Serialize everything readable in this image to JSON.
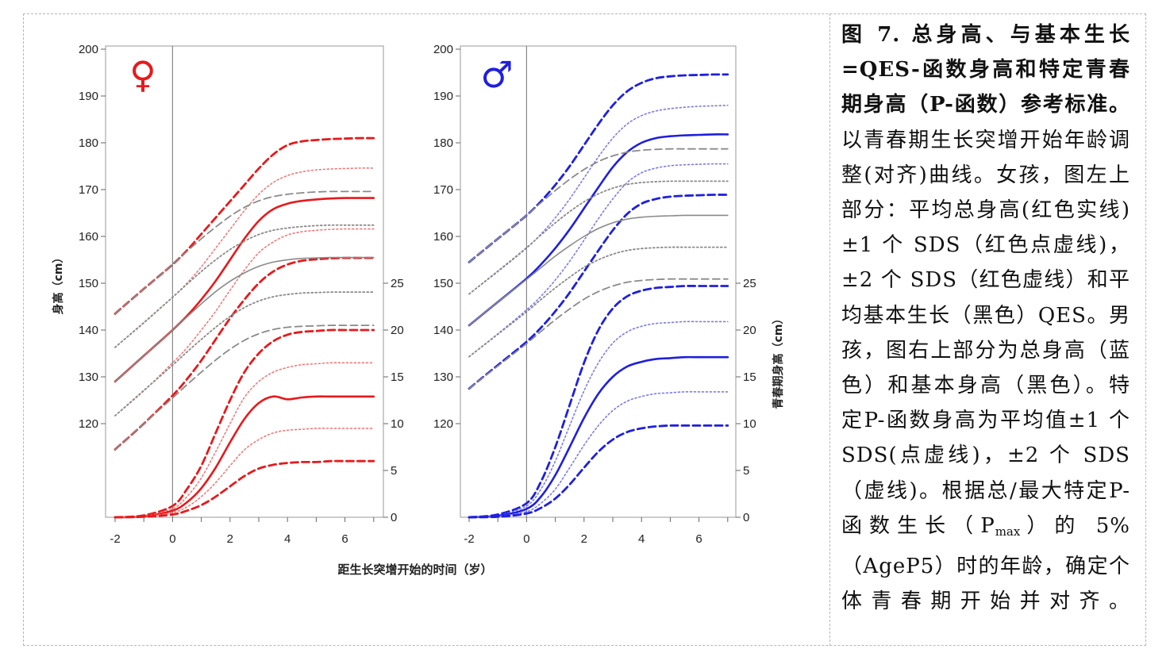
{
  "caption": {
    "title_bold": "图 7. 总身高、与基本生长=QES-函数身高和特定青春期身高（P-函数）参考标准。",
    "body": "以青春期生长突增开始年龄调整(对齐)曲线。女孩，图左上部分：平均总身高(红色实线)±1 个 SDS（红色点虚线)，±2 个 SDS（红色虚线）和平均基本生长（黑色）QES。男孩，图右上部分为总身高（蓝色）和基本身高（黑色）。特定P-函数身高为平均值±1 个SDS(点虚线)，±2 个 SDS（虚线)。根据总/最大特定P-函数生长（P",
    "sub": "max",
    "tail": "）的 5%（AgeP5）时的年龄，确定个体青春期开始并对齐。"
  },
  "chart_data": [
    {
      "type": "line",
      "panel": "girls",
      "symbol": "♀",
      "xlabel": "距生长突增开始的时间（岁）",
      "ylabel_left": "身高（cm）",
      "x_ticks": [
        -2,
        0,
        2,
        4,
        6
      ],
      "xlim": [
        -2,
        7
      ],
      "ylim_left": [
        100,
        200
      ],
      "y_ticks_left": [
        120,
        130,
        140,
        150,
        160,
        170,
        180,
        190,
        200
      ],
      "ylim_right": [
        0,
        25
      ],
      "y_ticks_right": [
        0,
        5,
        10,
        15,
        20,
        25
      ],
      "colors": {
        "total": "#e8191b",
        "total_sd1": "#f07a7a",
        "qes": "#8a8a8a",
        "vline": "#888888"
      },
      "x": [
        -2,
        -1,
        0,
        0.5,
        1,
        1.5,
        2,
        2.5,
        3,
        3.5,
        4,
        4.5,
        5,
        5.5,
        6,
        6.5,
        7
      ],
      "series": [
        {
          "role": "total",
          "axis": "left",
          "style": "dash",
          "values": [
            143.5,
            148.8,
            154,
            157,
            160.5,
            164,
            167.5,
            171,
            174.5,
            177.5,
            179.5,
            180.3,
            180.6,
            180.8,
            180.9,
            181,
            181
          ]
        },
        {
          "role": "total",
          "axis": "left",
          "style": "dot",
          "values": [
            136.3,
            141.5,
            147,
            150,
            153.5,
            157.5,
            161.5,
            165.5,
            169,
            171.5,
            173,
            173.8,
            174.2,
            174.4,
            174.5,
            174.6,
            174.6
          ]
        },
        {
          "role": "total",
          "axis": "left",
          "style": "solid",
          "values": [
            129,
            134.5,
            140,
            143,
            146.5,
            150.5,
            155,
            159.5,
            163.3,
            165.8,
            167,
            167.6,
            167.9,
            168.1,
            168.2,
            168.2,
            168.2
          ]
        },
        {
          "role": "total",
          "axis": "left",
          "style": "dot",
          "values": [
            121.7,
            127,
            133,
            136.2,
            140,
            144,
            148.5,
            152.8,
            156.5,
            158.8,
            160.3,
            161,
            161.3,
            161.5,
            161.6,
            161.6,
            161.6
          ]
        },
        {
          "role": "total",
          "axis": "left",
          "style": "dash",
          "values": [
            114.5,
            120,
            126,
            129.5,
            133.5,
            138,
            142.5,
            146.5,
            150,
            152.5,
            154,
            154.8,
            155.1,
            155.3,
            155.4,
            155.4,
            155.4
          ]
        },
        {
          "role": "qes",
          "axis": "left",
          "style": "dash",
          "values": [
            143.5,
            148.8,
            154,
            156.8,
            159.5,
            162,
            164.3,
            166.2,
            167.6,
            168.5,
            169,
            169.3,
            169.5,
            169.6,
            169.6,
            169.6,
            169.6
          ]
        },
        {
          "role": "qes",
          "axis": "left",
          "style": "dot",
          "values": [
            136.3,
            141.6,
            147,
            149.8,
            152.5,
            155,
            157.2,
            159,
            160.4,
            161.3,
            161.8,
            162.1,
            162.3,
            162.4,
            162.4,
            162.4,
            162.4
          ]
        },
        {
          "role": "qes",
          "axis": "left",
          "style": "solid",
          "values": [
            129,
            134.5,
            140,
            142.8,
            145.6,
            148.2,
            150.4,
            152.2,
            153.6,
            154.5,
            155,
            155.3,
            155.4,
            155.5,
            155.5,
            155.5,
            155.5
          ]
        },
        {
          "role": "qes",
          "axis": "left",
          "style": "dot",
          "values": [
            121.7,
            127.1,
            132.5,
            135.3,
            138,
            140.6,
            142.9,
            144.8,
            146.2,
            147.1,
            147.6,
            147.9,
            148,
            148.1,
            148.1,
            148.1,
            148.1
          ]
        },
        {
          "role": "qes",
          "axis": "left",
          "style": "dash",
          "values": [
            114.5,
            120,
            125.5,
            128.3,
            131,
            133.6,
            135.9,
            137.8,
            139.2,
            140.1,
            140.6,
            140.8,
            140.9,
            141,
            141,
            141,
            141
          ]
        },
        {
          "role": "pfunc",
          "axis": "right",
          "style": "dash",
          "values": [
            0,
            0.2,
            1.2,
            3,
            5.5,
            9,
            12.5,
            15.5,
            17.5,
            18.8,
            19.5,
            19.8,
            19.9,
            20,
            20,
            20,
            20
          ]
        },
        {
          "role": "pfunc",
          "axis": "right",
          "style": "dot",
          "values": [
            0,
            0.15,
            0.9,
            2.2,
            4.2,
            7,
            10,
            12.8,
            14.5,
            15.5,
            16,
            16.3,
            16.4,
            16.5,
            16.5,
            16.5,
            16.5
          ]
        },
        {
          "role": "pfunc",
          "axis": "right",
          "style": "solid",
          "values": [
            0,
            0.1,
            0.7,
            1.6,
            3.1,
            5.3,
            8,
            10.5,
            12.2,
            12.9,
            12.6,
            12.8,
            12.9,
            12.9,
            12.9,
            12.9,
            12.9
          ]
        },
        {
          "role": "pfunc",
          "axis": "right",
          "style": "dot",
          "values": [
            0,
            0.1,
            0.5,
            1.1,
            2.2,
            3.7,
            5.5,
            7.2,
            8.3,
            9,
            9.3,
            9.4,
            9.5,
            9.5,
            9.5,
            9.5,
            9.5
          ]
        },
        {
          "role": "pfunc",
          "axis": "right",
          "style": "dash",
          "values": [
            0,
            0.05,
            0.3,
            0.7,
            1.3,
            2.2,
            3.3,
            4.4,
            5.2,
            5.6,
            5.8,
            5.9,
            5.9,
            6,
            6,
            6,
            6
          ]
        }
      ]
    },
    {
      "type": "line",
      "panel": "boys",
      "symbol": "♂",
      "xlabel": "距生长突增开始的时间（岁）",
      "ylabel_right": "青春期身高（cm）",
      "x_ticks": [
        -2,
        0,
        2,
        4,
        6
      ],
      "xlim": [
        -2,
        7
      ],
      "ylim_left": [
        100,
        200
      ],
      "y_ticks_left": [
        120,
        130,
        140,
        150,
        160,
        170,
        180,
        190,
        200
      ],
      "ylim_right": [
        0,
        25
      ],
      "y_ticks_right": [
        0,
        5,
        10,
        15,
        20,
        25
      ],
      "colors": {
        "total": "#1f1fe0",
        "total_sd1": "#7a7af0",
        "qes": "#8a8a8a",
        "vline": "#888888"
      },
      "x": [
        -2,
        -1,
        0,
        0.5,
        1,
        1.5,
        2,
        2.5,
        3,
        3.5,
        4,
        4.5,
        5,
        5.5,
        6,
        6.5,
        7
      ],
      "series": [
        {
          "role": "total",
          "axis": "left",
          "style": "dash",
          "values": [
            154.5,
            159.5,
            164.5,
            167.5,
            171,
            175,
            179.5,
            184,
            188,
            191,
            192.8,
            193.8,
            194.2,
            194.4,
            194.5,
            194.6,
            194.6
          ]
        },
        {
          "role": "total",
          "axis": "left",
          "style": "dot",
          "values": [
            147.7,
            152.5,
            157.5,
            160.5,
            164,
            168,
            172.5,
            177,
            181,
            184,
            185.8,
            186.8,
            187.3,
            187.6,
            187.8,
            187.9,
            188
          ]
        },
        {
          "role": "total",
          "axis": "left",
          "style": "solid",
          "values": [
            141,
            146,
            151,
            154,
            157.5,
            161.5,
            166,
            170.5,
            174.8,
            178,
            180,
            181,
            181.4,
            181.6,
            181.7,
            181.8,
            181.8
          ]
        },
        {
          "role": "total",
          "axis": "left",
          "style": "dot",
          "values": [
            134.3,
            139.2,
            144.3,
            147.2,
            150.7,
            154.7,
            159.2,
            163.8,
            168,
            171.5,
            173.6,
            174.6,
            175.1,
            175.3,
            175.4,
            175.5,
            175.5
          ]
        },
        {
          "role": "total",
          "axis": "left",
          "style": "dash",
          "values": [
            127.5,
            132.5,
            137.5,
            140.5,
            144,
            148,
            152.5,
            157,
            161.3,
            164.8,
            167,
            168,
            168.5,
            168.7,
            168.8,
            168.9,
            168.9
          ]
        },
        {
          "role": "qes",
          "axis": "left",
          "style": "dash",
          "values": [
            154.5,
            159.5,
            164.5,
            167.2,
            169.8,
            172.2,
            174.3,
            176,
            177.2,
            178,
            178.4,
            178.6,
            178.7,
            178.7,
            178.7,
            178.7,
            178.7
          ]
        },
        {
          "role": "qes",
          "axis": "left",
          "style": "dot",
          "values": [
            147.7,
            152.6,
            157.6,
            160.3,
            162.9,
            165.3,
            167.4,
            169.1,
            170.3,
            171.1,
            171.5,
            171.7,
            171.8,
            171.8,
            171.8,
            171.8,
            171.8
          ]
        },
        {
          "role": "qes",
          "axis": "left",
          "style": "solid",
          "values": [
            141,
            146,
            150.8,
            153.3,
            155.8,
            158,
            160,
            161.7,
            162.9,
            163.7,
            164.1,
            164.3,
            164.4,
            164.5,
            164.5,
            164.5,
            164.5
          ]
        },
        {
          "role": "qes",
          "axis": "left",
          "style": "dot",
          "values": [
            134.3,
            139.1,
            143.9,
            146.5,
            149,
            151.3,
            153.4,
            155,
            156.2,
            157,
            157.4,
            157.6,
            157.7,
            157.7,
            157.7,
            157.7,
            157.7
          ]
        },
        {
          "role": "qes",
          "axis": "left",
          "style": "dash",
          "values": [
            127.5,
            132.3,
            137.1,
            139.7,
            142.2,
            144.5,
            146.6,
            148.2,
            149.4,
            150.2,
            150.6,
            150.8,
            150.9,
            150.9,
            150.9,
            150.9,
            150.9
          ]
        },
        {
          "role": "pfunc",
          "axis": "right",
          "style": "dash",
          "values": [
            0,
            0.3,
            1.5,
            3.8,
            7.5,
            12,
            16.5,
            20,
            22.3,
            23.6,
            24.2,
            24.5,
            24.6,
            24.7,
            24.7,
            24.7,
            24.7
          ]
        },
        {
          "role": "pfunc",
          "axis": "right",
          "style": "dot",
          "values": [
            0,
            0.2,
            1.2,
            3,
            6,
            9.8,
            13.5,
            16.5,
            18.6,
            19.8,
            20.4,
            20.7,
            20.8,
            20.9,
            20.9,
            20.9,
            20.9
          ]
        },
        {
          "role": "pfunc",
          "axis": "right",
          "style": "solid",
          "values": [
            0,
            0.15,
            0.9,
            2.2,
            4.5,
            7.5,
            10.6,
            13.2,
            15,
            16.1,
            16.6,
            16.9,
            17,
            17.1,
            17.1,
            17.1,
            17.1
          ]
        },
        {
          "role": "pfunc",
          "axis": "right",
          "style": "dot",
          "values": [
            0,
            0.1,
            0.6,
            1.5,
            3,
            5.3,
            7.7,
            9.8,
            11.4,
            12.4,
            12.9,
            13.2,
            13.3,
            13.4,
            13.4,
            13.4,
            13.4
          ]
        },
        {
          "role": "pfunc",
          "axis": "right",
          "style": "dash",
          "values": [
            0,
            0.05,
            0.4,
            1,
            2,
            3.5,
            5.3,
            7,
            8.3,
            9.1,
            9.5,
            9.7,
            9.8,
            9.8,
            9.8,
            9.8,
            9.8
          ]
        }
      ]
    }
  ]
}
